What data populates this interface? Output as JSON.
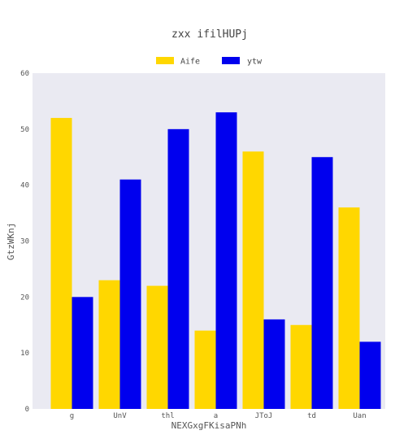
{
  "chart_data": {
    "type": "bar",
    "title": "zxx ifilHUPj",
    "xlabel": "NEXGxgFKisaPNh",
    "ylabel": "GtzWKnj",
    "categories": [
      "g",
      "UnV",
      "thl",
      "a",
      "JToJ",
      "td",
      "Uan"
    ],
    "series": [
      {
        "name": "Aife",
        "color": "#FFD700",
        "values": [
          52,
          23,
          22,
          14,
          46,
          15,
          36
        ]
      },
      {
        "name": "ytw",
        "color": "#0000EE",
        "values": [
          20,
          41,
          50,
          53,
          16,
          45,
          12
        ]
      }
    ],
    "ylim": [
      0,
      60
    ],
    "yticks": [
      0,
      10,
      20,
      30,
      40,
      50,
      60
    ],
    "grid": false,
    "legend": "top-center",
    "background": "#EAEAF2"
  }
}
